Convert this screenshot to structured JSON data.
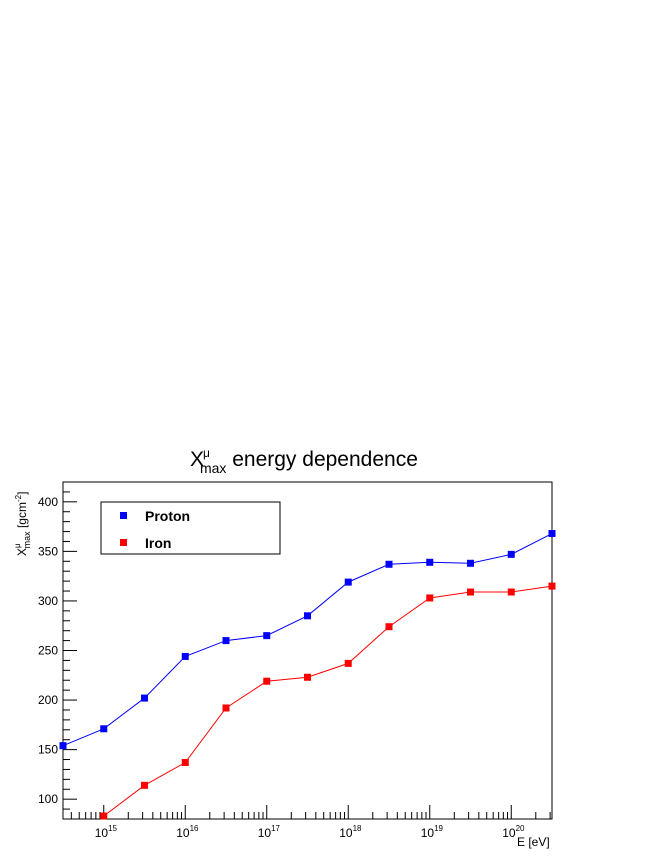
{
  "chart_data": {
    "type": "line",
    "title": {
      "base": "X",
      "sup": "μ",
      "sub": "max",
      "rest": " energy dependence"
    },
    "xlabel": "E [eV]",
    "ylabel": {
      "base": "X",
      "sup": "μ",
      "sub": "max",
      "unit_pre": " [gcm",
      "unit_sup": "-2",
      "unit_post": "]"
    },
    "x_scale": "log",
    "xlim_log10": [
      14.5,
      20.5
    ],
    "ylim": [
      80,
      420
    ],
    "x_ticks": [
      {
        "exp": 15,
        "base": "10",
        "sup": "15"
      },
      {
        "exp": 16,
        "base": "10",
        "sup": "16"
      },
      {
        "exp": 17,
        "base": "10",
        "sup": "17"
      },
      {
        "exp": 18,
        "base": "10",
        "sup": "18"
      },
      {
        "exp": 19,
        "base": "10",
        "sup": "19"
      },
      {
        "exp": 20,
        "base": "10",
        "sup": "20"
      }
    ],
    "y_ticks": [
      100,
      150,
      200,
      250,
      300,
      350,
      400
    ],
    "legend_position": "top-left",
    "series": [
      {
        "name": "Proton",
        "color": "#0000ff",
        "x_log10": [
          14.5,
          15.0,
          15.5,
          16.0,
          16.5,
          17.0,
          17.5,
          18.0,
          18.5,
          19.0,
          19.5,
          20.0,
          20.5
        ],
        "values": [
          154,
          171,
          202,
          244,
          260,
          265,
          285,
          319,
          337,
          339,
          338,
          347,
          368
        ]
      },
      {
        "name": "Iron",
        "color": "#ff0000",
        "x_log10": [
          15.0,
          15.5,
          16.0,
          16.5,
          17.0,
          17.5,
          18.0,
          18.5,
          19.0,
          19.5,
          20.0,
          20.5
        ],
        "values": [
          83,
          114,
          137,
          192,
          219,
          223,
          237,
          274,
          303,
          309,
          309,
          315
        ]
      }
    ]
  }
}
